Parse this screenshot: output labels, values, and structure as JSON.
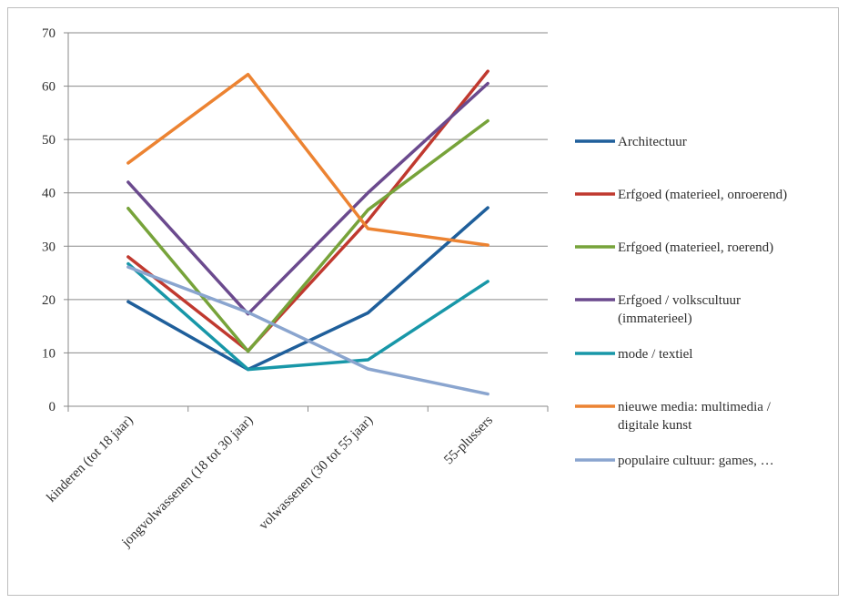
{
  "chart_data": {
    "type": "line",
    "categories": [
      "kinderen (tot 18 jaar)",
      "jongvolwassenen (18 tot 30 jaar)",
      "volwassenen (30 tot 55 jaar)",
      "55-plussers"
    ],
    "ylim": [
      0,
      70
    ],
    "yticks": [
      "0",
      "10",
      "20",
      "30",
      "40",
      "50",
      "60",
      "70"
    ],
    "grid": true,
    "legend_position": "right",
    "series": [
      {
        "name": "Architectuur",
        "values": [
          19.6,
          6.9,
          17.5,
          37.2
        ],
        "color": "#1f5f9b"
      },
      {
        "name": "Erfgoed (materieel, onroerend)",
        "values": [
          28.0,
          10.4,
          34.8,
          62.8
        ],
        "color": "#c0392f"
      },
      {
        "name": "Erfgoed (materieel, roerend)",
        "values": [
          37.1,
          10.3,
          36.8,
          53.5
        ],
        "color": "#77a33a"
      },
      {
        "name": "Erfgoed / volkscultuur (immaterieel)",
        "values": [
          42.0,
          17.3,
          40.0,
          60.5
        ],
        "color": "#6b4a8e"
      },
      {
        "name": "mode / textiel",
        "values": [
          26.7,
          6.9,
          8.7,
          23.4
        ],
        "color": "#1897a8"
      },
      {
        "name": "nieuwe media: multimedia / digitale kunst",
        "values": [
          45.6,
          62.2,
          33.3,
          30.2
        ],
        "color": "#ec8332"
      },
      {
        "name": "populaire cultuur: games, …",
        "values": [
          26.1,
          17.6,
          7.0,
          2.3
        ],
        "color": "#8aa5cf"
      }
    ]
  }
}
